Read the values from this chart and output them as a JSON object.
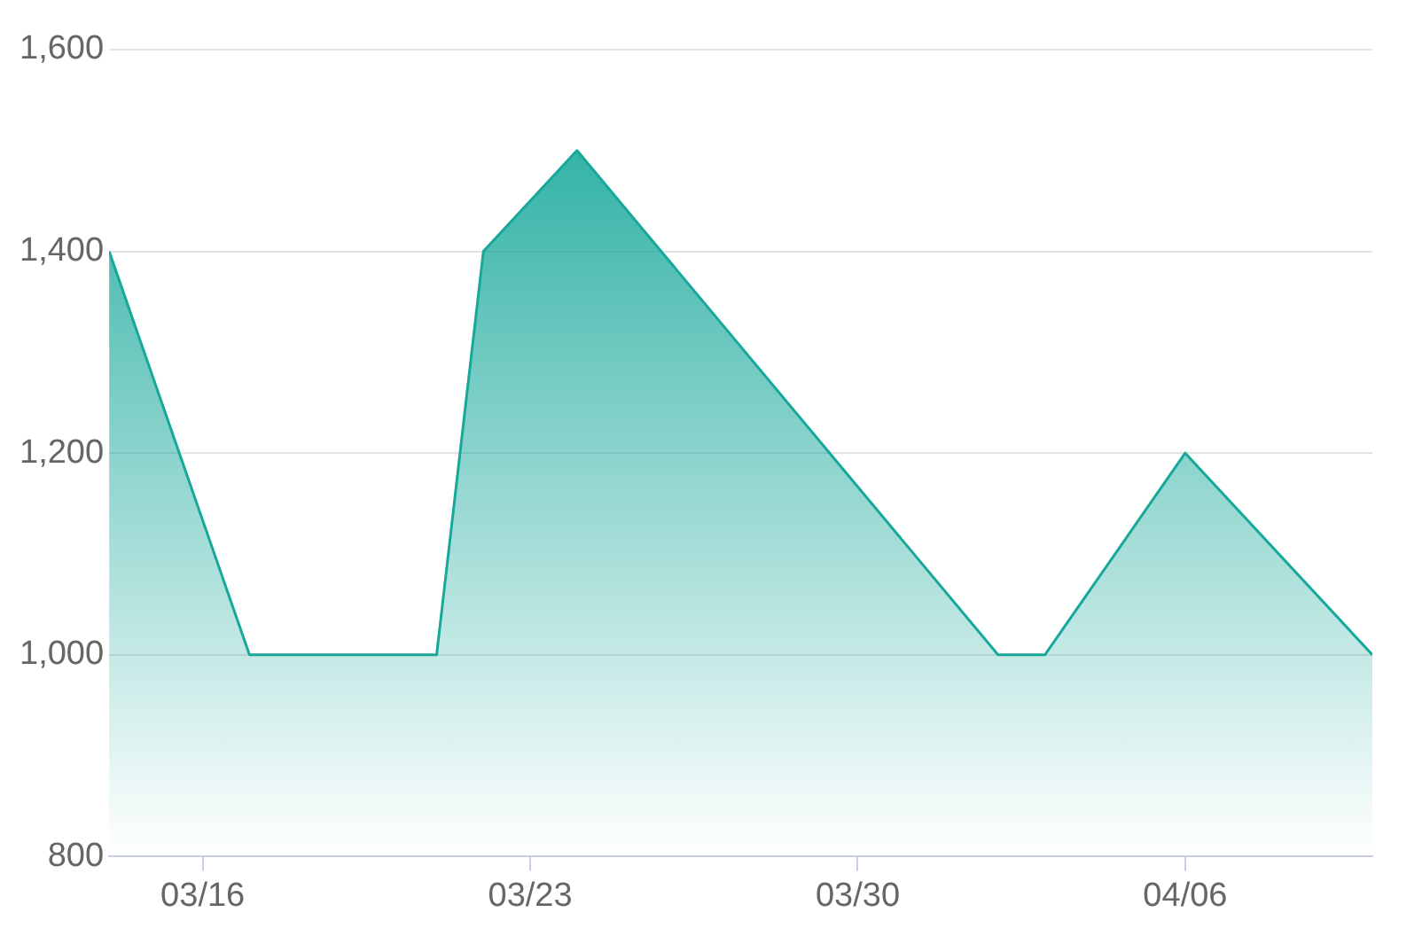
{
  "chart_data": {
    "type": "area",
    "x": [
      "--03-14",
      "--03-17",
      "--03-21",
      "--03-22",
      "--03-24",
      "--04-02",
      "--04-03",
      "--04-06",
      "--04-10"
    ],
    "series": [
      {
        "color": "#17a89a",
        "values": [
          1400,
          1000,
          1000,
          1400,
          1500,
          1000,
          1000,
          1200,
          1000
        ]
      }
    ],
    "xlim": [
      "--03-14",
      "--04-10"
    ],
    "xticks": [
      {
        "value": "--03-16",
        "label": "03/16"
      },
      {
        "value": "--03-23",
        "label": "03/23"
      },
      {
        "value": "--03-30",
        "label": "03/30"
      },
      {
        "value": "--04-06",
        "label": "04/06"
      }
    ],
    "ylim": [
      800,
      1600
    ],
    "yticks": [
      {
        "value": 800,
        "label": "800"
      },
      {
        "value": 1000,
        "label": "1,000"
      },
      {
        "value": 1200,
        "label": "1,200"
      },
      {
        "value": 1400,
        "label": "1,400"
      },
      {
        "value": 1600,
        "label": "1,600"
      }
    ],
    "grid": "y",
    "legend": false,
    "marker": "none"
  }
}
